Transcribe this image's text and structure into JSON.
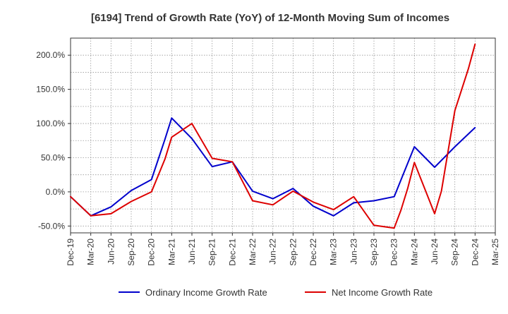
{
  "chart_data": {
    "type": "line",
    "title": "[6194]  Trend of Growth Rate (YoY) of 12-Month Moving Sum of Incomes",
    "xlabel": "",
    "ylabel": "",
    "x": [
      "Dec-19",
      "Mar-20",
      "Jun-20",
      "Sep-20",
      "Dec-20",
      "Mar-21",
      "Jun-21",
      "Sep-21",
      "Dec-21",
      "Mar-22",
      "Jun-22",
      "Sep-22",
      "Dec-22",
      "Mar-23",
      "Jun-23",
      "Sep-23",
      "Dec-23",
      "Mar-24",
      "Jun-24",
      "Sep-24",
      "Dec-24",
      "Mar-25"
    ],
    "ylim": [
      -60,
      225
    ],
    "yticks": [
      -50,
      0,
      50,
      100,
      150,
      200
    ],
    "ytick_labels": [
      "-50.0%",
      "0.0%",
      "50.0%",
      "100.0%",
      "150.0%",
      "200.0%"
    ],
    "grid": true,
    "legend_position": "bottom",
    "series": [
      {
        "name": "Ordinary Income Growth Rate",
        "color": "#0000cc",
        "points": [
          {
            "month": 0,
            "value": -7
          },
          {
            "month": 3,
            "value": -35
          },
          {
            "month": 6,
            "value": -22
          },
          {
            "month": 9,
            "value": 2
          },
          {
            "month": 12,
            "value": 18
          },
          {
            "month": 14,
            "value": 77
          },
          {
            "month": 15,
            "value": 108
          },
          {
            "month": 18,
            "value": 78
          },
          {
            "month": 21,
            "value": 37
          },
          {
            "month": 24,
            "value": 44
          },
          {
            "month": 27,
            "value": 1
          },
          {
            "month": 30,
            "value": -10
          },
          {
            "month": 33,
            "value": 5
          },
          {
            "month": 36,
            "value": -21
          },
          {
            "month": 39,
            "value": -35
          },
          {
            "month": 42,
            "value": -16
          },
          {
            "month": 45,
            "value": -13
          },
          {
            "month": 48,
            "value": -7
          },
          {
            "month": 51,
            "value": 66
          },
          {
            "month": 54,
            "value": 36
          },
          {
            "month": 57,
            "value": 66
          },
          {
            "month": 60,
            "value": 94
          }
        ]
      },
      {
        "name": "Net Income Growth Rate",
        "color": "#dd0000",
        "points": [
          {
            "month": 0,
            "value": -7
          },
          {
            "month": 3,
            "value": -35
          },
          {
            "month": 6,
            "value": -32
          },
          {
            "month": 9,
            "value": -14
          },
          {
            "month": 12,
            "value": 0
          },
          {
            "month": 14,
            "value": 48
          },
          {
            "month": 15,
            "value": 80
          },
          {
            "month": 18,
            "value": 100
          },
          {
            "month": 21,
            "value": 49
          },
          {
            "month": 24,
            "value": 44
          },
          {
            "month": 27,
            "value": -13
          },
          {
            "month": 30,
            "value": -19
          },
          {
            "month": 33,
            "value": 1
          },
          {
            "month": 36,
            "value": -15
          },
          {
            "month": 39,
            "value": -26
          },
          {
            "month": 42,
            "value": -7
          },
          {
            "month": 45,
            "value": -49
          },
          {
            "month": 48,
            "value": -53
          },
          {
            "month": 49,
            "value": -27
          },
          {
            "month": 50,
            "value": 5
          },
          {
            "month": 51,
            "value": 43
          },
          {
            "month": 54,
            "value": -32
          },
          {
            "month": 55,
            "value": 1
          },
          {
            "month": 57,
            "value": 119
          },
          {
            "month": 59,
            "value": 180
          },
          {
            "month": 60,
            "value": 216
          }
        ]
      }
    ]
  }
}
